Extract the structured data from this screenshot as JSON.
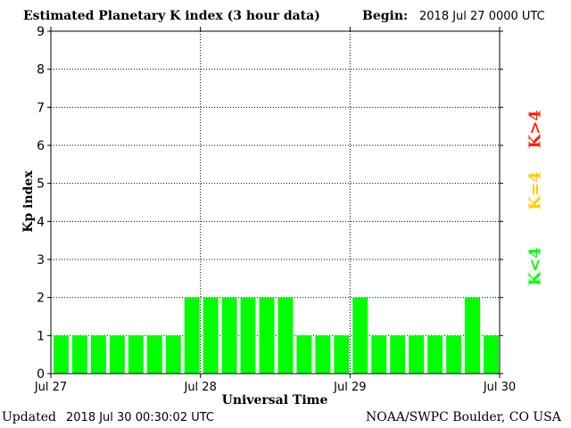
{
  "header": {
    "title": "Estimated Planetary K index (3 hour data)",
    "begin_label": "Begin:",
    "begin_value": "2018 Jul 27 0000 UTC"
  },
  "footer": {
    "updated_label": "Updated",
    "updated_value": "2018 Jul 30 00:30:02 UTC",
    "source": "NOAA/SWPC Boulder, CO USA"
  },
  "legend": {
    "low": "K<4",
    "equal": "K=4",
    "high": "K>4",
    "colors": {
      "low": "#00ff00",
      "equal": "#ffcc00",
      "high": "#ff2200"
    }
  },
  "chart_data": {
    "type": "bar",
    "title": "Estimated Planetary K index (3 hour data)",
    "xlabel": "Universal Time",
    "ylabel": "Kp index",
    "ylim": [
      0,
      9
    ],
    "yticks": [
      0,
      1,
      2,
      3,
      4,
      5,
      6,
      7,
      8,
      9
    ],
    "x_tick_labels": [
      "Jul 27",
      "Jul 28",
      "Jul 29",
      "Jul 30"
    ],
    "grid": true,
    "bar_color": "#00ff00",
    "series": [
      {
        "values": [
          1,
          1,
          1,
          1,
          1,
          1,
          1,
          2,
          2,
          2,
          2,
          2,
          2,
          1,
          1,
          1,
          2,
          1,
          1,
          1,
          1,
          1,
          2,
          1
        ]
      }
    ]
  }
}
